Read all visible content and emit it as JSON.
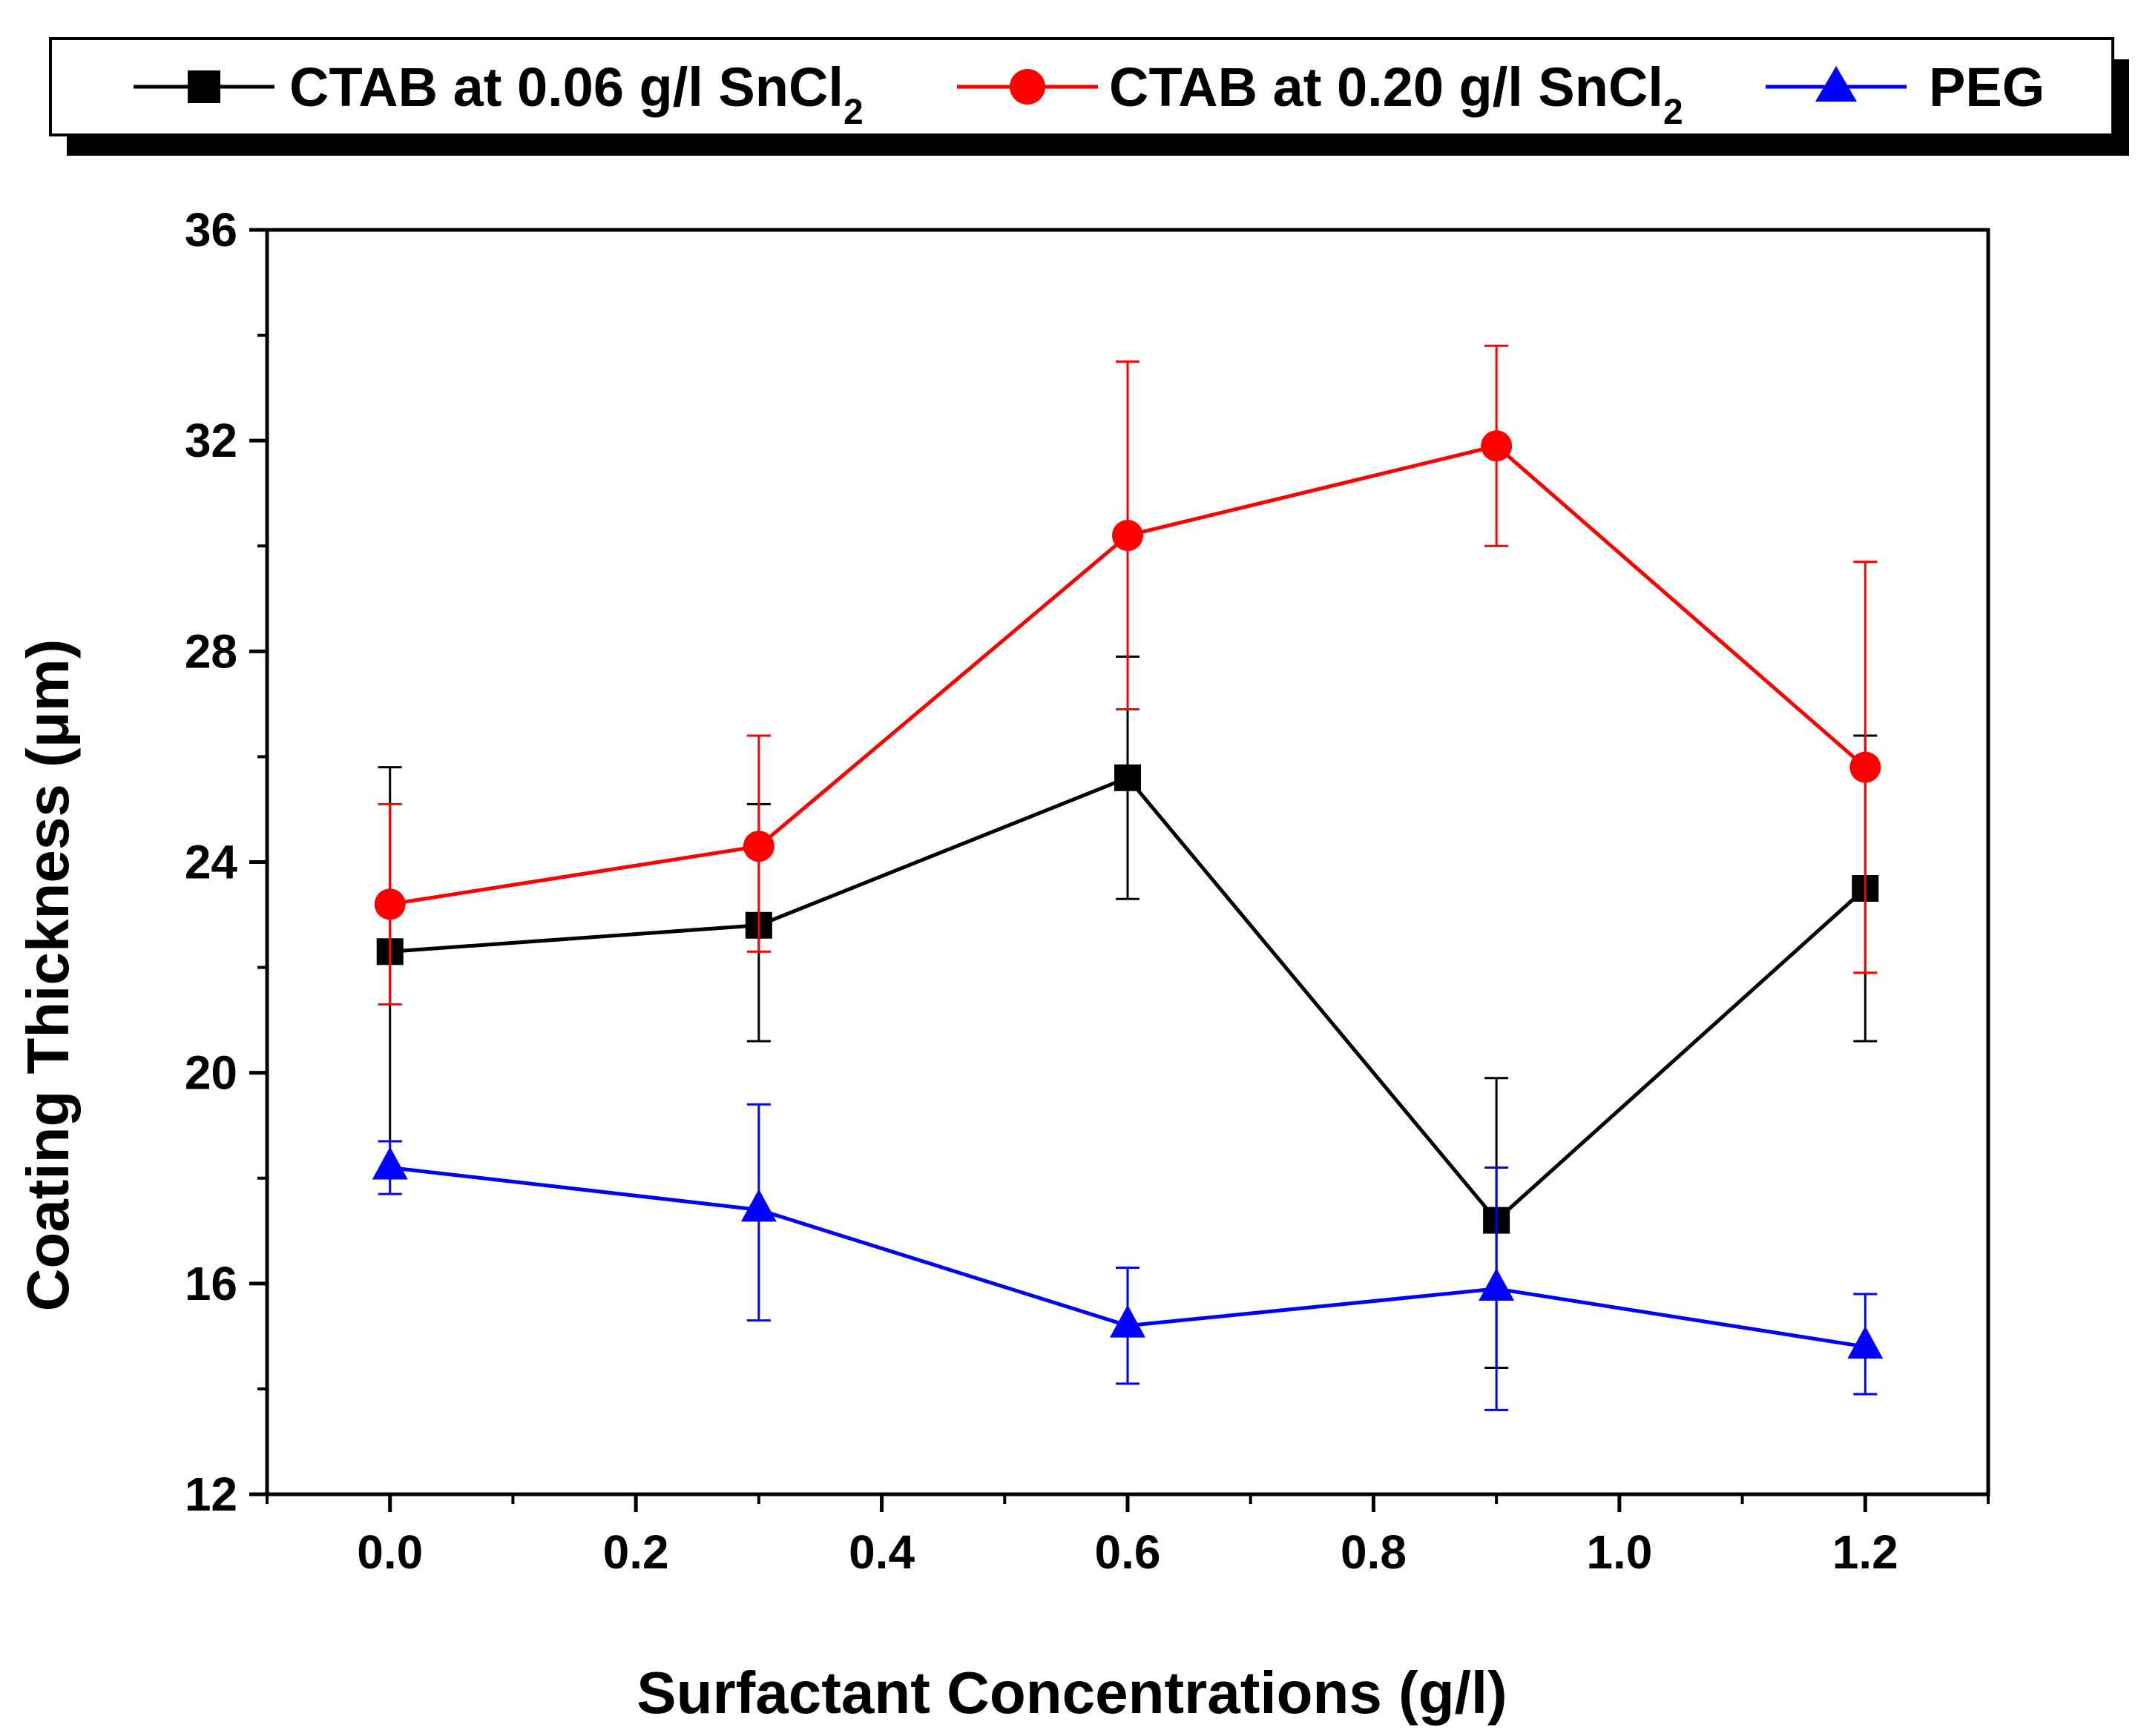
{
  "chart_data": {
    "type": "line",
    "xlabel": "Surfactant Concentrations (g/l)",
    "ylabel_text": "Coating Thickness (",
    "ylabel_unit": "μm",
    "ylabel_close": ")",
    "xlim": [
      -0.1,
      1.3
    ],
    "ylim": [
      12,
      36
    ],
    "x_ticks": [
      0.0,
      0.2,
      0.4,
      0.6,
      0.8,
      1.0,
      1.2
    ],
    "x_tick_labels": [
      "0.0",
      "0.2",
      "0.4",
      "0.6",
      "0.8",
      "1.0",
      "1.2"
    ],
    "y_ticks": [
      12,
      16,
      20,
      24,
      28,
      32,
      36
    ],
    "y_tick_labels": [
      "12",
      "16",
      "20",
      "24",
      "28",
      "32",
      "36"
    ],
    "x": [
      0.0,
      0.3,
      0.6,
      0.9,
      1.2
    ],
    "legend_position": "top",
    "series": [
      {
        "name": "CTAB at 0.06 g/l SnCl",
        "name_subscript": "2",
        "color": "#000000",
        "marker": "square",
        "values": [
          22.3,
          22.8,
          25.6,
          17.2,
          23.5
        ],
        "err_low": [
          18.7,
          20.6,
          23.3,
          14.4,
          20.6
        ],
        "err_high": [
          25.8,
          25.1,
          27.9,
          19.9,
          26.4
        ]
      },
      {
        "name": "CTAB at 0.20 g/l SnCl",
        "name_subscript": "2",
        "color": "#ff0000",
        "marker": "circle",
        "values": [
          23.2,
          24.3,
          30.2,
          31.9,
          25.8
        ],
        "err_low": [
          21.3,
          22.3,
          26.9,
          30.0,
          21.9
        ],
        "err_high": [
          25.1,
          26.4,
          33.5,
          33.8,
          29.7
        ]
      },
      {
        "name": "PEG",
        "name_subscript": "",
        "color": "#0000ff",
        "marker": "triangle",
        "values": [
          18.2,
          17.4,
          15.2,
          15.9,
          14.8
        ],
        "err_low": [
          17.7,
          15.3,
          14.1,
          13.6,
          13.9
        ],
        "err_high": [
          18.7,
          19.4,
          16.3,
          18.2,
          15.8
        ]
      }
    ]
  }
}
